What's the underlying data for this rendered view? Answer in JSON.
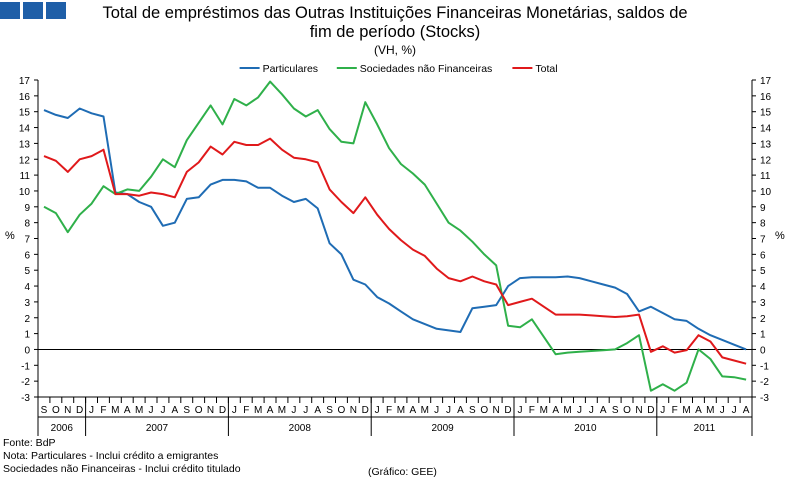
{
  "header": {
    "title_line1": "Total de empréstimos das Outras Instituições Financeiras Monetárias, saldos de",
    "title_line2": "fim de período (Stocks)",
    "subtitle": "(VH, %)"
  },
  "logo_icon": "bank-logo-icon",
  "chart_data": {
    "type": "line",
    "y_axis_label_left": "%",
    "y_axis_label_right": "%",
    "ylim": [
      -3,
      17
    ],
    "yticks": [
      -3,
      -2,
      -1,
      0,
      1,
      2,
      3,
      4,
      5,
      6,
      7,
      8,
      9,
      10,
      11,
      12,
      13,
      14,
      15,
      16,
      17
    ],
    "grid": false,
    "legend_position": "top-center",
    "month_labels": [
      "S",
      "O",
      "N",
      "D",
      "J",
      "F",
      "M",
      "A",
      "M",
      "J",
      "J",
      "A",
      "S",
      "O",
      "N",
      "D",
      "J",
      "F",
      "M",
      "A",
      "M",
      "J",
      "J",
      "A",
      "S",
      "O",
      "N",
      "D",
      "J",
      "F",
      "M",
      "A",
      "M",
      "J",
      "J",
      "A",
      "S",
      "O",
      "N",
      "D",
      "J",
      "F",
      "M",
      "A",
      "M",
      "J",
      "J",
      "A",
      "S",
      "O",
      "N",
      "D",
      "J",
      "F",
      "M",
      "A",
      "M",
      "J",
      "J",
      "A"
    ],
    "year_groups": [
      {
        "label": "2006",
        "months": 4
      },
      {
        "label": "2007",
        "months": 12
      },
      {
        "label": "2008",
        "months": 12
      },
      {
        "label": "2009",
        "months": 12
      },
      {
        "label": "2010",
        "months": 12
      },
      {
        "label": "2011",
        "months": 8
      }
    ],
    "series": [
      {
        "name": "Particulares",
        "color": "#1f6cb4",
        "values": [
          15.1,
          14.8,
          14.6,
          15.2,
          14.9,
          14.7,
          9.9,
          9.8,
          9.3,
          9.0,
          7.8,
          8.0,
          9.5,
          9.6,
          10.4,
          10.7,
          10.7,
          10.6,
          10.2,
          10.2,
          9.7,
          9.3,
          9.5,
          8.9,
          6.7,
          6.0,
          4.4,
          4.1,
          3.3,
          2.9,
          2.4,
          1.9,
          1.6,
          1.3,
          1.2,
          1.1,
          2.6,
          2.7,
          2.8,
          4.0,
          4.5,
          4.55,
          4.55,
          4.55,
          4.6,
          4.5,
          4.3,
          4.1,
          3.9,
          3.5,
          2.4,
          2.7,
          2.3,
          1.9,
          1.8,
          1.3,
          0.9,
          0.6,
          0.3,
          0.0
        ]
      },
      {
        "name": "Sociedades não Financeiras",
        "color": "#2fb04a",
        "values": [
          9.0,
          8.6,
          7.4,
          8.5,
          9.2,
          10.3,
          9.8,
          10.1,
          10.0,
          10.9,
          12.0,
          11.5,
          13.2,
          14.3,
          15.4,
          14.2,
          15.8,
          15.4,
          15.9,
          16.9,
          16.1,
          15.2,
          14.7,
          15.1,
          13.9,
          13.1,
          13.0,
          15.6,
          14.2,
          12.7,
          11.7,
          11.1,
          10.4,
          9.2,
          8.0,
          7.5,
          6.8,
          6.0,
          5.3,
          1.5,
          1.4,
          1.9,
          0.8,
          -0.3,
          -0.2,
          -0.15,
          -0.1,
          -0.05,
          0.0,
          0.4,
          0.9,
          -2.6,
          -2.2,
          -2.6,
          -2.1,
          0.0,
          -0.6,
          -1.7,
          -1.75,
          -1.9
        ]
      },
      {
        "name": "Total",
        "color": "#e0191b",
        "values": [
          12.2,
          11.9,
          11.2,
          12.0,
          12.2,
          12.6,
          9.8,
          9.8,
          9.7,
          9.9,
          9.8,
          9.6,
          11.2,
          11.8,
          12.8,
          12.3,
          13.1,
          12.9,
          12.9,
          13.3,
          12.6,
          12.1,
          12.0,
          11.8,
          10.1,
          9.3,
          8.6,
          9.6,
          8.5,
          7.6,
          6.9,
          6.3,
          5.9,
          5.1,
          4.5,
          4.3,
          4.6,
          4.3,
          4.1,
          2.8,
          3.0,
          3.2,
          2.7,
          2.2,
          2.2,
          2.2,
          2.15,
          2.1,
          2.05,
          2.1,
          2.2,
          -0.15,
          0.2,
          -0.2,
          -0.05,
          0.9,
          0.5,
          -0.5,
          -0.7,
          -0.9
        ]
      }
    ]
  },
  "footer": {
    "source": "Fonte: BdP",
    "note1": "Nota: Particulares - Inclui crédito a emigrantes",
    "note2": "Sociedades não Financeiras - Inclui crédito titulado",
    "credit": "(Gráfico: GEE)"
  }
}
